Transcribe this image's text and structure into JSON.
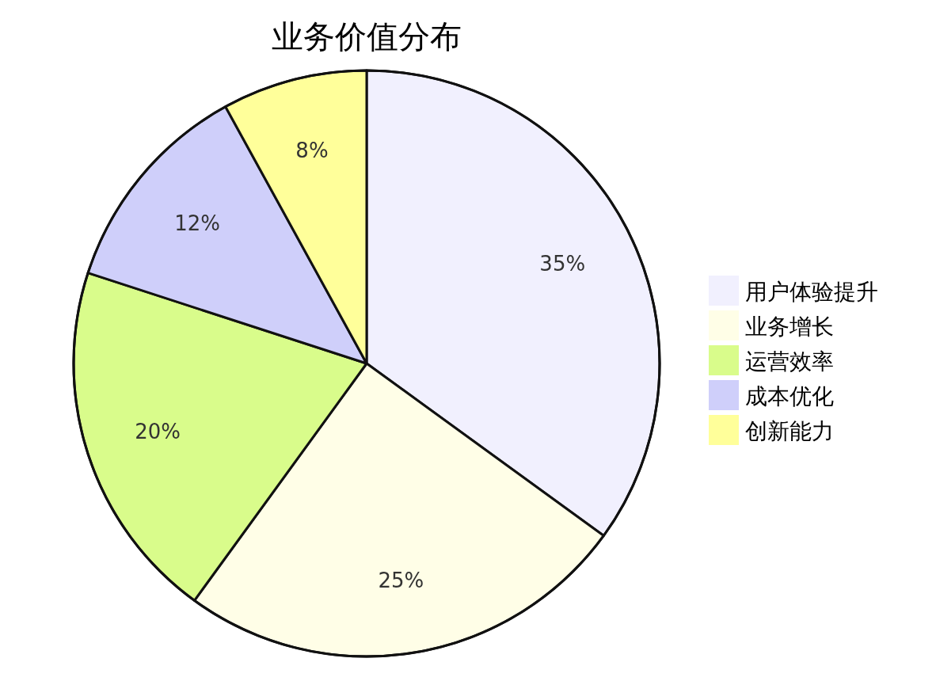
{
  "chart_data": {
    "type": "pie",
    "title": "业务价值分布",
    "categories": [
      "用户体验提升",
      "业务增长",
      "运营效率",
      "成本优化",
      "创新能力"
    ],
    "values": [
      35,
      25,
      20,
      12,
      8
    ],
    "colors": [
      "#f1f0fe",
      "#fffee7",
      "#d9fc8b",
      "#cfcffa",
      "#ffff9a"
    ],
    "value_labels": [
      "35%",
      "25%",
      "20%",
      "12%",
      "8%"
    ],
    "legend": "right"
  }
}
